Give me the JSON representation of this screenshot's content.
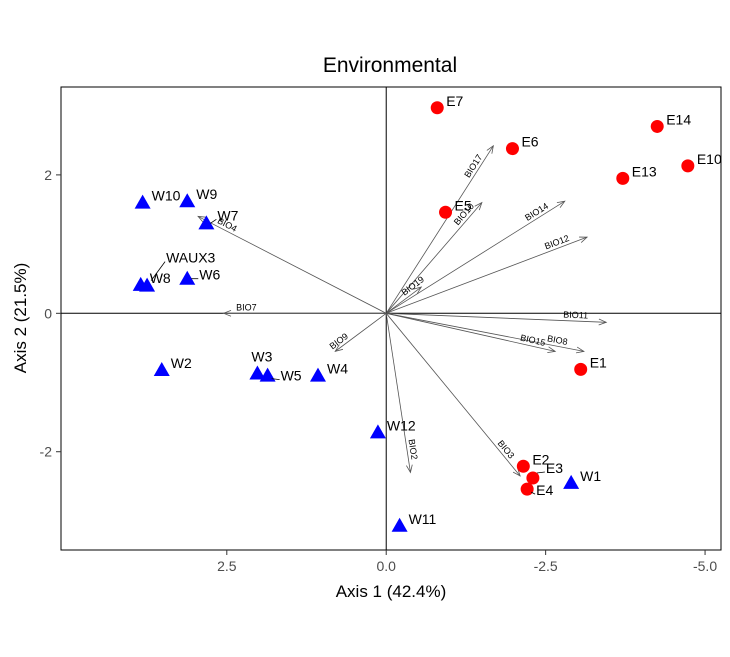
{
  "chart_data": {
    "type": "scatter",
    "title": "Environmental",
    "xlabel": "Axis 1 (42.4%)",
    "ylabel": "Axis 2 (21.5%)",
    "x_reversed": true,
    "xlim": [
      5.1,
      -5.25
    ],
    "ylim": [
      -3.42,
      3.27
    ],
    "x_ticks": [
      2.5,
      0.0,
      -2.5,
      -5.0
    ],
    "x_tick_labels": [
      "2.5",
      "0.0",
      "-2.5",
      "-5.0"
    ],
    "y_ticks": [
      -2,
      0,
      2
    ],
    "y_tick_labels": [
      "-2",
      "0",
      "2"
    ],
    "grid": false,
    "reference_lines": {
      "x": 0,
      "y": 0
    },
    "colors": {
      "E": "#ff0000",
      "W": "#0000ff",
      "vector": "#555555"
    },
    "series": [
      {
        "marker": "circle",
        "points": [
          {
            "label": "E1",
            "x": -3.05,
            "y": -0.81
          },
          {
            "label": "E2",
            "x": -2.15,
            "y": -2.21
          },
          {
            "label": "E3",
            "x": -2.3,
            "y": -2.38
          },
          {
            "label": "E4",
            "x": -2.21,
            "y": -2.54
          },
          {
            "label": "E5",
            "x": -0.93,
            "y": 1.46
          },
          {
            "label": "E6",
            "x": -1.98,
            "y": 2.38
          },
          {
            "label": "E7",
            "x": -0.8,
            "y": 2.97
          },
          {
            "label": "E10",
            "x": -4.73,
            "y": 2.13
          },
          {
            "label": "E13",
            "x": -3.71,
            "y": 1.95
          },
          {
            "label": "E14",
            "x": -4.25,
            "y": 2.7
          }
        ]
      },
      {
        "marker": "triangle",
        "points": [
          {
            "label": "W1",
            "x": -2.9,
            "y": -2.45
          },
          {
            "label": "W2",
            "x": 3.52,
            "y": -0.82
          },
          {
            "label": "W3",
            "x": 2.02,
            "y": -0.87
          },
          {
            "label": "W4",
            "x": 1.07,
            "y": -0.9
          },
          {
            "label": "W5",
            "x": 1.86,
            "y": -0.9
          },
          {
            "label": "W6",
            "x": 3.12,
            "y": 0.5
          },
          {
            "label": "W7",
            "x": 2.82,
            "y": 1.3
          },
          {
            "label": "W8",
            "x": 3.85,
            "y": 0.41
          },
          {
            "label": "WAUX3",
            "x": 3.75,
            "y": 0.4
          },
          {
            "label": "W9",
            "x": 3.12,
            "y": 1.62
          },
          {
            "label": "W10",
            "x": 3.82,
            "y": 1.6
          },
          {
            "label": "W11",
            "x": -0.21,
            "y": -3.07
          },
          {
            "label": "W12",
            "x": 0.13,
            "y": -1.72
          }
        ]
      }
    ],
    "vectors": [
      {
        "label": "BIO2",
        "x": -0.38,
        "y": -2.3
      },
      {
        "label": "BIO3",
        "x": -2.1,
        "y": -2.35
      },
      {
        "label": "BIO4",
        "x": 2.95,
        "y": 1.4
      },
      {
        "label": "BIO7",
        "x": 2.55,
        "y": 0.0
      },
      {
        "label": "BIO8",
        "x": -3.1,
        "y": -0.55
      },
      {
        "label": "BIO9",
        "x": 0.8,
        "y": -0.55
      },
      {
        "label": "BIO10",
        "x": -1.5,
        "y": 1.6
      },
      {
        "label": "BIO11",
        "x": -3.45,
        "y": -0.13
      },
      {
        "label": "BIO12",
        "x": -3.15,
        "y": 1.1
      },
      {
        "label": "BIO14",
        "x": -2.8,
        "y": 1.62
      },
      {
        "label": "BIO15",
        "x": -2.65,
        "y": -0.55
      },
      {
        "label": "BIO17",
        "x": -1.68,
        "y": 2.42
      },
      {
        "label": "BIO19",
        "x": -0.55,
        "y": 0.38
      }
    ]
  }
}
